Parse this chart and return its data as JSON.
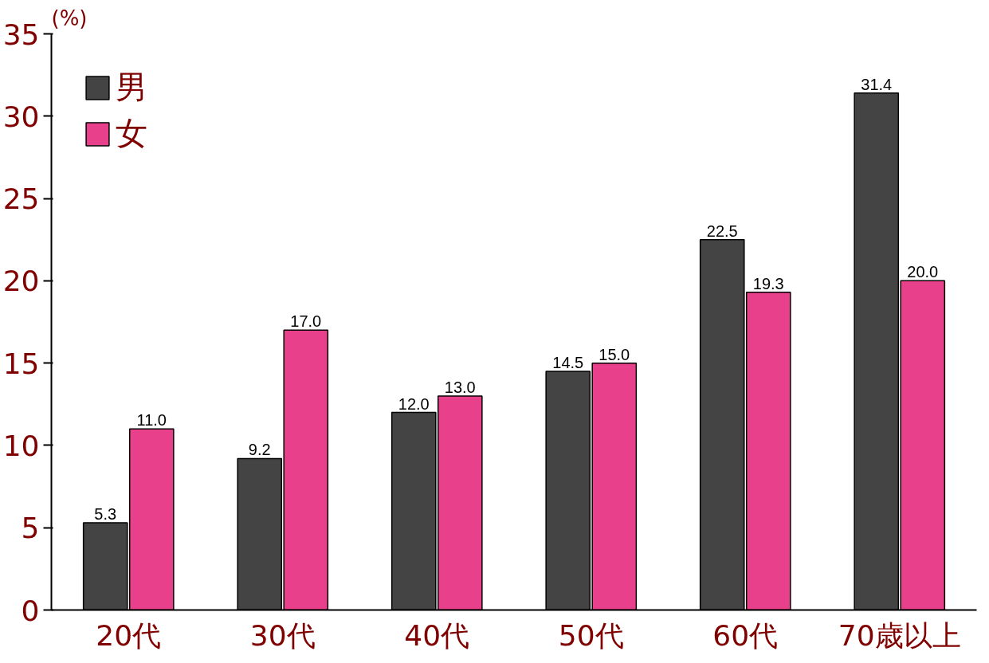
{
  "chart_data": {
    "type": "bar",
    "ylabel": "(%)",
    "categories": [
      "20代",
      "30代",
      "40代",
      "50代",
      "60代",
      "70歳以上"
    ],
    "series": [
      {
        "name": "男",
        "color": "#444444",
        "values": [
          5.3,
          9.2,
          12.0,
          14.5,
          22.5,
          31.4
        ],
        "value_labels": [
          "5.3",
          "9.2",
          "12.0",
          "14.5",
          "22.5",
          "31.4"
        ]
      },
      {
        "name": "女",
        "color": "#e8408a",
        "values": [
          11.0,
          17.0,
          13.0,
          15.0,
          19.3,
          20.0
        ],
        "value_labels": [
          "11.0",
          "17.0",
          "13.0",
          "15.0",
          "19.3",
          "20.0"
        ]
      }
    ],
    "ylim": [
      0,
      35
    ],
    "yticks": [
      0,
      5,
      10,
      15,
      20,
      25,
      30,
      35
    ],
    "grid": false,
    "legend": "top left"
  }
}
